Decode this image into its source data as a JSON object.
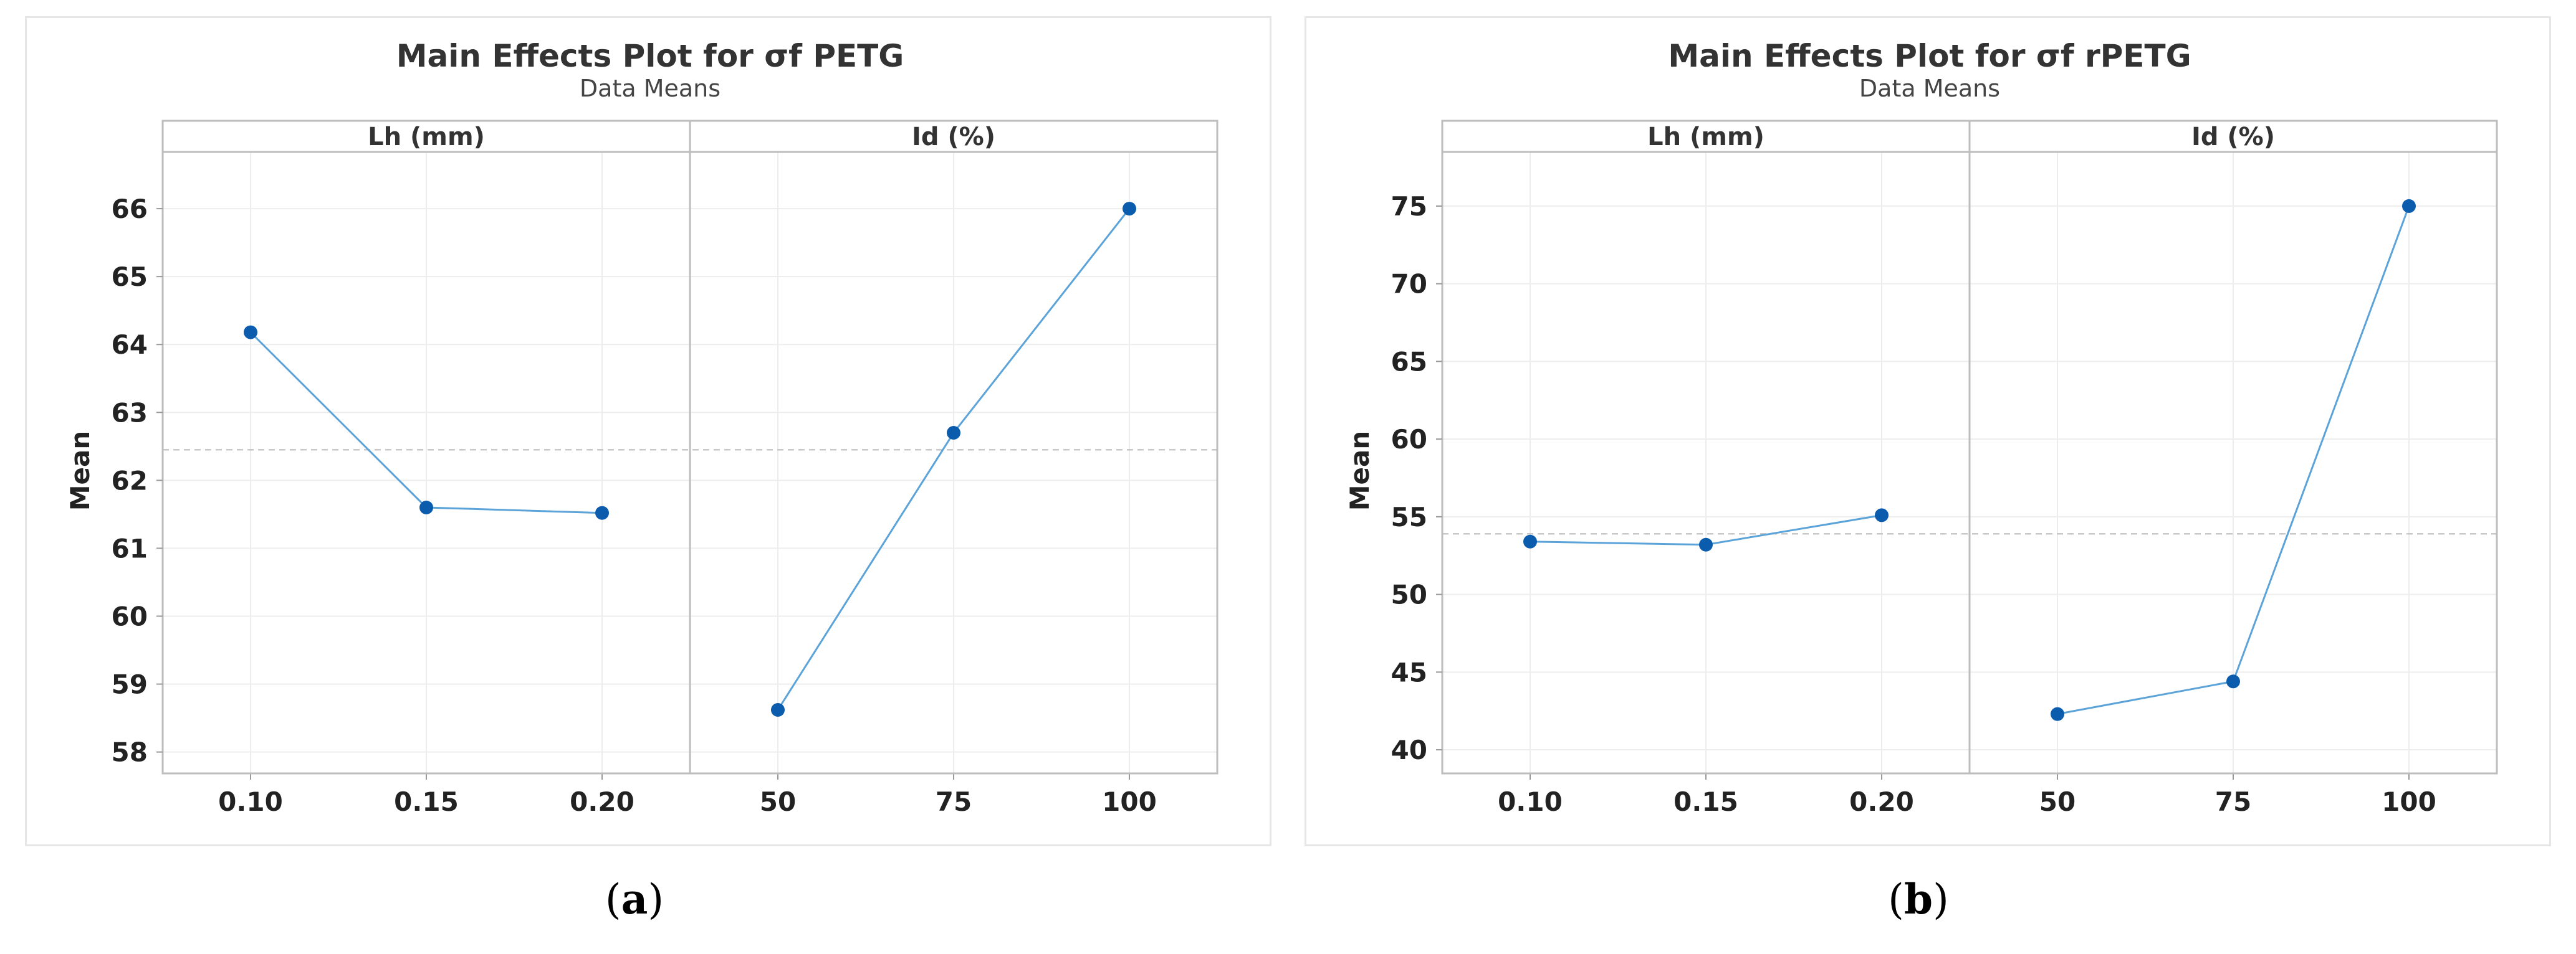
{
  "chart_data": [
    {
      "type": "line",
      "title": "Main Effects Plot for σf PETG",
      "subtitle": "Data Means",
      "ylabel": "Mean",
      "ylim": [
        57.85,
        66.45
      ],
      "yticks": [
        58,
        59,
        60,
        61,
        62,
        63,
        64,
        65,
        66
      ],
      "reference_mean": 62.45,
      "grid": true,
      "marker_color": "#0b5cad",
      "line_color": "#5ba3d8",
      "facets": [
        {
          "label": "Lh (mm)",
          "categories": [
            "0.10",
            "0.15",
            "0.20"
          ],
          "values": [
            64.18,
            61.6,
            61.52
          ]
        },
        {
          "label": "Id (%)",
          "categories": [
            "50",
            "75",
            "100"
          ],
          "values": [
            58.62,
            62.7,
            66.0
          ]
        }
      ]
    },
    {
      "type": "line",
      "title": "Main Effects Plot for σf rPETG",
      "subtitle": "Data Means",
      "ylabel": "Mean",
      "ylim": [
        39.2,
        76.8
      ],
      "yticks": [
        40,
        45,
        50,
        55,
        60,
        65,
        70,
        75
      ],
      "reference_mean": 53.9,
      "grid": true,
      "marker_color": "#0b5cad",
      "line_color": "#5ba3d8",
      "facets": [
        {
          "label": "Lh (mm)",
          "categories": [
            "0.10",
            "0.15",
            "0.20"
          ],
          "values": [
            53.4,
            53.2,
            55.1
          ]
        },
        {
          "label": "Id (%)",
          "categories": [
            "50",
            "75",
            "100"
          ],
          "values": [
            42.3,
            44.4,
            75.0
          ]
        }
      ]
    }
  ],
  "captions": [
    {
      "open": "(",
      "letter": "a",
      "close": ")"
    },
    {
      "open": "(",
      "letter": "b",
      "close": ")"
    }
  ]
}
